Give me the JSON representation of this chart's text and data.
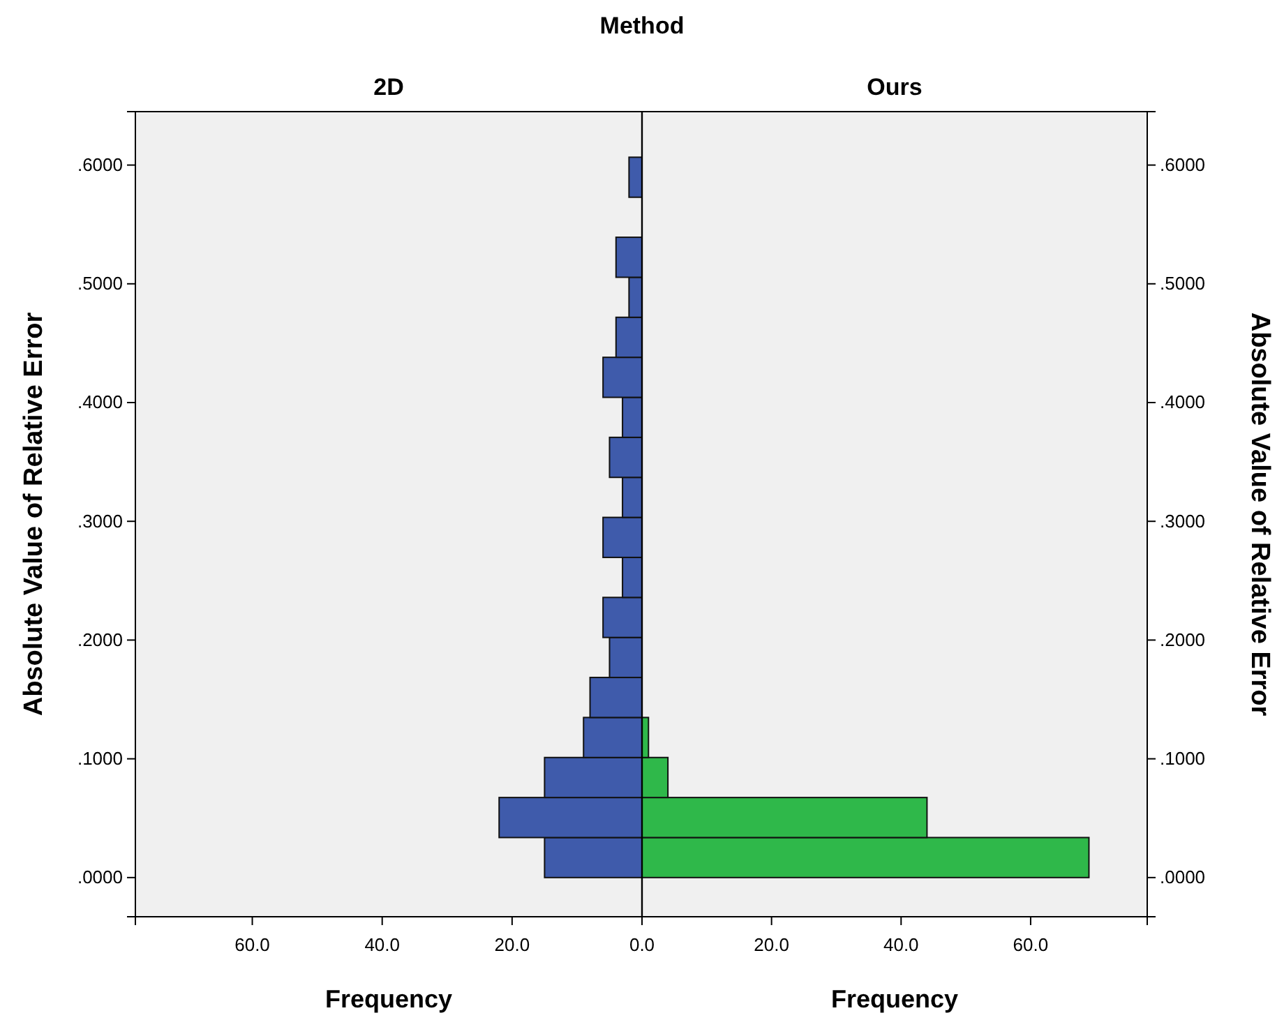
{
  "chart_data": [
    {
      "type": "histogram",
      "orientation": "horizontal",
      "title": "2D",
      "annotations": [
        "Method"
      ],
      "xlabel": "Frequency",
      "ylabel": "Absolute Value of Relative Error",
      "bins": [
        0,
        0.0337,
        0.0674,
        0.1011,
        0.1348,
        0.1685,
        0.2022,
        0.2359,
        0.2696,
        0.3033,
        0.337,
        0.3707,
        0.4044,
        0.4381,
        0.4718,
        0.5055,
        0.5392,
        0.5729,
        0.6066
      ],
      "values": [
        15,
        22,
        15,
        9,
        8,
        5,
        6,
        3,
        6,
        3,
        5,
        3,
        6,
        4,
        2,
        4,
        0,
        2
      ],
      "color": "#3f5bab",
      "xlim": [
        78,
        0
      ],
      "xticks": [
        {
          "value": 60,
          "label": "60.0"
        },
        {
          "value": 40,
          "label": "40.0"
        },
        {
          "value": 20,
          "label": "20.0"
        }
      ],
      "ylim": [
        -0.033,
        0.645
      ],
      "yticks": [
        {
          "value": 0,
          "label": ".0000"
        },
        {
          "value": 0.1,
          "label": ".1000"
        },
        {
          "value": 0.2,
          "label": ".2000"
        },
        {
          "value": 0.3,
          "label": ".3000"
        },
        {
          "value": 0.4,
          "label": ".4000"
        },
        {
          "value": 0.5,
          "label": ".5000"
        },
        {
          "value": 0.6,
          "label": ".6000"
        }
      ]
    },
    {
      "type": "histogram",
      "orientation": "horizontal",
      "title": "Ours",
      "xlabel": "Frequency",
      "ylabel": "Absolute Value of Relative Error",
      "bins": [
        0,
        0.0337,
        0.0674,
        0.1011,
        0.1348,
        0.1685,
        0.2022,
        0.2359,
        0.2696,
        0.3033,
        0.337,
        0.3707,
        0.4044,
        0.4381,
        0.4718,
        0.5055,
        0.5392,
        0.5729,
        0.6066
      ],
      "values": [
        69,
        44,
        4,
        1,
        0,
        0,
        0,
        0,
        0,
        0,
        0,
        0,
        0,
        0,
        0,
        0,
        0,
        0
      ],
      "color": "#2fb84a",
      "xlim": [
        0,
        78
      ],
      "xticks": [
        {
          "value": 0,
          "label": "0.0"
        },
        {
          "value": 20,
          "label": "20.0"
        },
        {
          "value": 40,
          "label": "40.0"
        },
        {
          "value": 60,
          "label": "60.0"
        }
      ],
      "ylim": [
        -0.033,
        0.645
      ],
      "yticks": [
        {
          "value": 0,
          "label": ".0000"
        },
        {
          "value": 0.1,
          "label": ".1000"
        },
        {
          "value": 0.2,
          "label": ".2000"
        },
        {
          "value": 0.3,
          "label": ".3000"
        },
        {
          "value": 0.4,
          "label": ".4000"
        },
        {
          "value": 0.5,
          "label": ".5000"
        },
        {
          "value": 0.6,
          "label": ".6000"
        }
      ]
    }
  ]
}
